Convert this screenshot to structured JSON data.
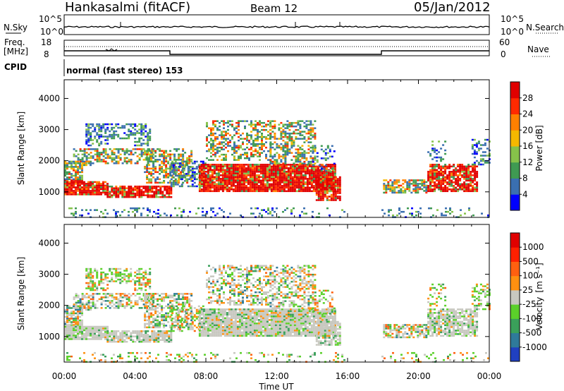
{
  "header": {
    "station": "Hankasalmi (fitACF)",
    "beam": "Beam 12",
    "date": "05/Jan/2012"
  },
  "top_panels": {
    "nsky_label": "N.Sky",
    "nsky_ticks": [
      "10^5",
      "10^0"
    ],
    "nsearch_label": "N.Search",
    "nsearch_ticks": [
      "10^5",
      "10^0"
    ],
    "freq_label_1": "Freq.",
    "freq_label_2": "[MHz]",
    "freq_ticks": [
      "18",
      "8"
    ],
    "nave_label": "Nave",
    "nave_ticks": [
      "60",
      "0"
    ],
    "cpid_label": "CPID",
    "cpid_text": "normal (fast stereo) 153"
  },
  "chart_data": [
    {
      "type": "heatmap",
      "name": "power-panel",
      "ylabel": "Slant Range [km]",
      "ylim": [
        180,
        4600
      ],
      "yticks": [
        "1000",
        "2000",
        "3000",
        "4000"
      ],
      "xlim_hours": [
        0,
        24
      ],
      "colorbar_label": "Power [dB]",
      "colorbar_ticks": [
        "28",
        "24",
        "20",
        "16",
        "12",
        "8",
        "4"
      ],
      "colors": [
        "#0000ff",
        "#3a6fb0",
        "#3f9a52",
        "#86c24a",
        "#f5b800",
        "#ff8000",
        "#ff2a00",
        "#e00000"
      ]
    },
    {
      "type": "heatmap",
      "name": "velocity-panel",
      "ylabel": "Slant Range [km]",
      "ylim": [
        180,
        4600
      ],
      "yticks": [
        "1000",
        "2000",
        "3000",
        "4000"
      ],
      "xlim_hours": [
        0,
        24
      ],
      "colorbar_label": "Velocity",
      "colorbar_unit": "[m s⁻¹]",
      "colorbar_ticks": [
        "1000",
        "500",
        "100",
        "25",
        "-25",
        "-100",
        "-500",
        "-1000"
      ],
      "colors": [
        "#2040c0",
        "#2f7a9a",
        "#3aa05a",
        "#5bd02a",
        "#c8c8c0",
        "#ff9010",
        "#ff6010",
        "#ff2000",
        "#e00000"
      ]
    }
  ],
  "xaxis": {
    "ticks": [
      "00:00",
      "04:00",
      "08:00",
      "12:00",
      "16:00",
      "20:00",
      "00:00"
    ],
    "label": "Time UT"
  }
}
